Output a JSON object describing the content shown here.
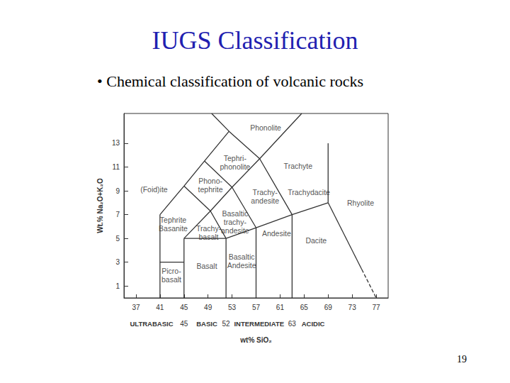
{
  "slide": {
    "title": "IUGS Classification",
    "subtitle": "• Chemical classification of volcanic rocks",
    "page_number": 19
  },
  "chart_data": {
    "type": "line",
    "xlabel": "wt% SiO₂",
    "ylabel": "Wt.% Na₂O+K₂O",
    "xlim": [
      35,
      79
    ],
    "ylim": [
      0,
      15.5
    ],
    "xticks": [
      37,
      41,
      45,
      49,
      53,
      57,
      61,
      65,
      69,
      73,
      77
    ],
    "yticks": [
      1,
      3,
      5,
      7,
      9,
      11,
      13
    ],
    "grid": false,
    "color": "#333333",
    "boundaries": [
      {
        "line_style": "solid",
        "points": [
          [
            41,
            0
          ],
          [
            41,
            7
          ]
        ]
      },
      {
        "line_style": "solid",
        "points": [
          [
            45,
            0
          ],
          [
            45,
            5
          ]
        ]
      },
      {
        "line_style": "solid",
        "points": [
          [
            41,
            3
          ],
          [
            45,
            3
          ]
        ]
      },
      {
        "line_style": "solid",
        "points": [
          [
            45,
            5
          ],
          [
            52,
            5
          ],
          [
            57,
            5.9
          ],
          [
            63,
            7
          ],
          [
            69,
            8
          ]
        ]
      },
      {
        "line_style": "solid",
        "points": [
          [
            52,
            0
          ],
          [
            52,
            5
          ]
        ]
      },
      {
        "line_style": "solid",
        "points": [
          [
            57,
            0
          ],
          [
            57,
            5.9
          ]
        ]
      },
      {
        "line_style": "solid",
        "points": [
          [
            63,
            0
          ],
          [
            63,
            7
          ]
        ]
      },
      {
        "line_style": "solid",
        "points": [
          [
            45,
            5
          ],
          [
            49.4,
            7.3
          ],
          [
            52,
            5
          ]
        ]
      },
      {
        "line_style": "solid",
        "points": [
          [
            41,
            7
          ],
          [
            45,
            9.4
          ],
          [
            48.4,
            11.5
          ],
          [
            52.5,
            14
          ],
          [
            49.6,
            15.5
          ]
        ]
      },
      {
        "line_style": "solid",
        "points": [
          [
            45,
            9.4
          ],
          [
            49.4,
            7.3
          ],
          [
            53,
            9.3
          ],
          [
            57.6,
            11.7
          ],
          [
            64.6,
            15.5
          ]
        ]
      },
      {
        "line_style": "solid",
        "points": [
          [
            48.4,
            11.5
          ],
          [
            53,
            9.3
          ],
          [
            57,
            5.9
          ]
        ]
      },
      {
        "line_style": "solid",
        "points": [
          [
            52.5,
            14
          ],
          [
            57.6,
            11.7
          ],
          [
            63,
            7
          ]
        ]
      },
      {
        "line_style": "solid",
        "points": [
          [
            69,
            8
          ],
          [
            69,
            13
          ]
        ]
      },
      {
        "line_style": "solid",
        "points": [
          [
            69,
            8
          ],
          [
            74.6,
            2.4
          ]
        ]
      },
      {
        "line_style": "dashed",
        "points": [
          [
            74.6,
            2.4
          ],
          [
            77,
            0
          ]
        ]
      }
    ],
    "fields": [
      {
        "label": "Phonolite",
        "x": 58.6,
        "y": 14.3
      },
      {
        "label": "Tephri-\nphonolite",
        "x": 53.5,
        "y": 11.4
      },
      {
        "label": "Trachyte",
        "x": 64,
        "y": 11.1
      },
      {
        "label": "Phono-\ntephrite",
        "x": 49.4,
        "y": 9.5
      },
      {
        "label": "(Foid)ite",
        "x": 40,
        "y": 9.1
      },
      {
        "label": "Trachy-\nandesite",
        "x": 58.5,
        "y": 8.5
      },
      {
        "label": "Trachydacite",
        "x": 65.8,
        "y": 8.9
      },
      {
        "label": "Basaltic\ntrachy-\nandesite",
        "x": 53.5,
        "y": 6.4
      },
      {
        "label": "Rhyolite",
        "x": 74.4,
        "y": 8
      },
      {
        "label": "Tephrite\nBasanite",
        "x": 43.2,
        "y": 6.2
      },
      {
        "label": "Trachy-\nbasalt",
        "x": 49.1,
        "y": 5.5
      },
      {
        "label": "Andesite",
        "x": 60.4,
        "y": 5.4
      },
      {
        "label": "Dacite",
        "x": 67,
        "y": 4.8
      },
      {
        "label": "Basaltic\nAndesite",
        "x": 54.6,
        "y": 3.1
      },
      {
        "label": "Basalt",
        "x": 48.8,
        "y": 2.7
      },
      {
        "label": "Picro-\nbasalt",
        "x": 42.9,
        "y": 1.9
      }
    ],
    "silica_classes": {
      "names": [
        {
          "label": "ULTRABASIC",
          "x": 39.6
        },
        {
          "label": "BASIC",
          "x": 48.8
        },
        {
          "label": "INTERMEDIATE",
          "x": 57.5
        },
        {
          "label": "ACIDIC",
          "x": 66.5
        }
      ],
      "bounds": [
        45,
        52,
        63
      ]
    }
  }
}
